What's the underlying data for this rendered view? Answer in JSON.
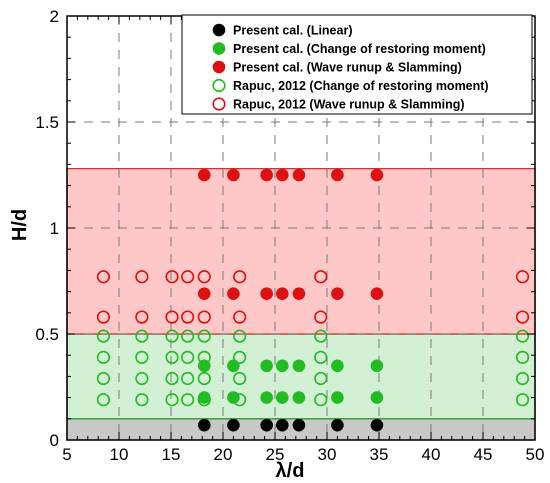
{
  "chart_data": {
    "type": "scatter",
    "xlabel": "λ/d",
    "ylabel": "H/d",
    "xlim": [
      5,
      50
    ],
    "ylim": [
      0,
      2
    ],
    "xticks": [
      5,
      10,
      15,
      20,
      25,
      30,
      35,
      40,
      45,
      50
    ],
    "yticks": [
      0,
      0.5,
      1,
      1.5,
      2
    ],
    "xtick_labels": [
      "5",
      "10",
      "15",
      "20",
      "25",
      "30",
      "35",
      "40",
      "45",
      "50"
    ],
    "ytick_labels": [
      "0",
      "0.5",
      "1",
      "1.5",
      "2"
    ],
    "grid": true,
    "legend_position": "top-right",
    "bands": [
      {
        "y0": 0,
        "y1": 0.1,
        "color": "#c8c8c8",
        "edge": "#8a8a8a"
      },
      {
        "y0": 0.1,
        "y1": 0.5,
        "color": "#d2f0d4",
        "edge": "#1f9a2a"
      },
      {
        "y0": 0.5,
        "y1": 1.28,
        "color": "#ffc8c8",
        "edge": "#d23232"
      }
    ],
    "series": [
      {
        "name": "Present cal. (Linear)",
        "marker": "filled",
        "color": "#000000",
        "points": [
          [
            18.2,
            0.07
          ],
          [
            21,
            0.07
          ],
          [
            24.2,
            0.07
          ],
          [
            25.7,
            0.07
          ],
          [
            27.3,
            0.07
          ],
          [
            31,
            0.07
          ],
          [
            34.8,
            0.07
          ]
        ]
      },
      {
        "name": "Present cal. (Change of restoring moment)",
        "marker": "filled",
        "color": "#22bb22",
        "points": [
          [
            18.2,
            0.2
          ],
          [
            21,
            0.2
          ],
          [
            24.2,
            0.2
          ],
          [
            25.7,
            0.2
          ],
          [
            27.3,
            0.2
          ],
          [
            31,
            0.2
          ],
          [
            34.8,
            0.2
          ],
          [
            18.2,
            0.35
          ],
          [
            21,
            0.35
          ],
          [
            24.2,
            0.35
          ],
          [
            25.7,
            0.35
          ],
          [
            27.3,
            0.35
          ],
          [
            31,
            0.35
          ],
          [
            34.8,
            0.35
          ]
        ]
      },
      {
        "name": "Present cal. (Wave runup & Slamming)",
        "marker": "filled",
        "color": "#dd1111",
        "points": [
          [
            18.2,
            0.69
          ],
          [
            21,
            0.69
          ],
          [
            24.2,
            0.69
          ],
          [
            25.7,
            0.69
          ],
          [
            27.3,
            0.69
          ],
          [
            31,
            0.69
          ],
          [
            34.8,
            0.69
          ],
          [
            18.2,
            1.25
          ],
          [
            21,
            1.25
          ],
          [
            24.2,
            1.25
          ],
          [
            25.7,
            1.25
          ],
          [
            27.3,
            1.25
          ],
          [
            31,
            1.25
          ],
          [
            34.8,
            1.25
          ]
        ]
      },
      {
        "name": "Rapuc, 2012 (Change of restoring moment)",
        "marker": "open",
        "color": "#22bb22",
        "points": [
          [
            8.5,
            0.19
          ],
          [
            8.5,
            0.29
          ],
          [
            8.5,
            0.39
          ],
          [
            8.5,
            0.49
          ],
          [
            12.2,
            0.19
          ],
          [
            12.2,
            0.29
          ],
          [
            12.2,
            0.39
          ],
          [
            12.2,
            0.49
          ],
          [
            15.1,
            0.19
          ],
          [
            15.1,
            0.29
          ],
          [
            15.1,
            0.39
          ],
          [
            15.1,
            0.49
          ],
          [
            16.6,
            0.19
          ],
          [
            16.6,
            0.29
          ],
          [
            16.6,
            0.39
          ],
          [
            16.6,
            0.49
          ],
          [
            18.2,
            0.19
          ],
          [
            18.2,
            0.29
          ],
          [
            18.2,
            0.39
          ],
          [
            18.2,
            0.49
          ],
          [
            21.6,
            0.19
          ],
          [
            21.6,
            0.29
          ],
          [
            21.6,
            0.39
          ],
          [
            21.6,
            0.49
          ],
          [
            29.4,
            0.19
          ],
          [
            29.4,
            0.29
          ],
          [
            29.4,
            0.39
          ],
          [
            29.4,
            0.49
          ],
          [
            48.8,
            0.19
          ],
          [
            48.8,
            0.29
          ],
          [
            48.8,
            0.39
          ],
          [
            48.8,
            0.49
          ]
        ]
      },
      {
        "name": "Rapuc, 2012 (Wave runup & Slamming)",
        "marker": "open",
        "color": "#dd1111",
        "points": [
          [
            8.5,
            0.58
          ],
          [
            8.5,
            0.77
          ],
          [
            12.2,
            0.58
          ],
          [
            12.2,
            0.77
          ],
          [
            15.1,
            0.58
          ],
          [
            15.1,
            0.77
          ],
          [
            16.6,
            0.58
          ],
          [
            16.6,
            0.77
          ],
          [
            18.2,
            0.58
          ],
          [
            18.2,
            0.77
          ],
          [
            21.6,
            0.58
          ],
          [
            21.6,
            0.77
          ],
          [
            29.4,
            0.58
          ],
          [
            29.4,
            0.77
          ],
          [
            48.8,
            0.58
          ],
          [
            48.8,
            0.77
          ]
        ]
      }
    ]
  }
}
